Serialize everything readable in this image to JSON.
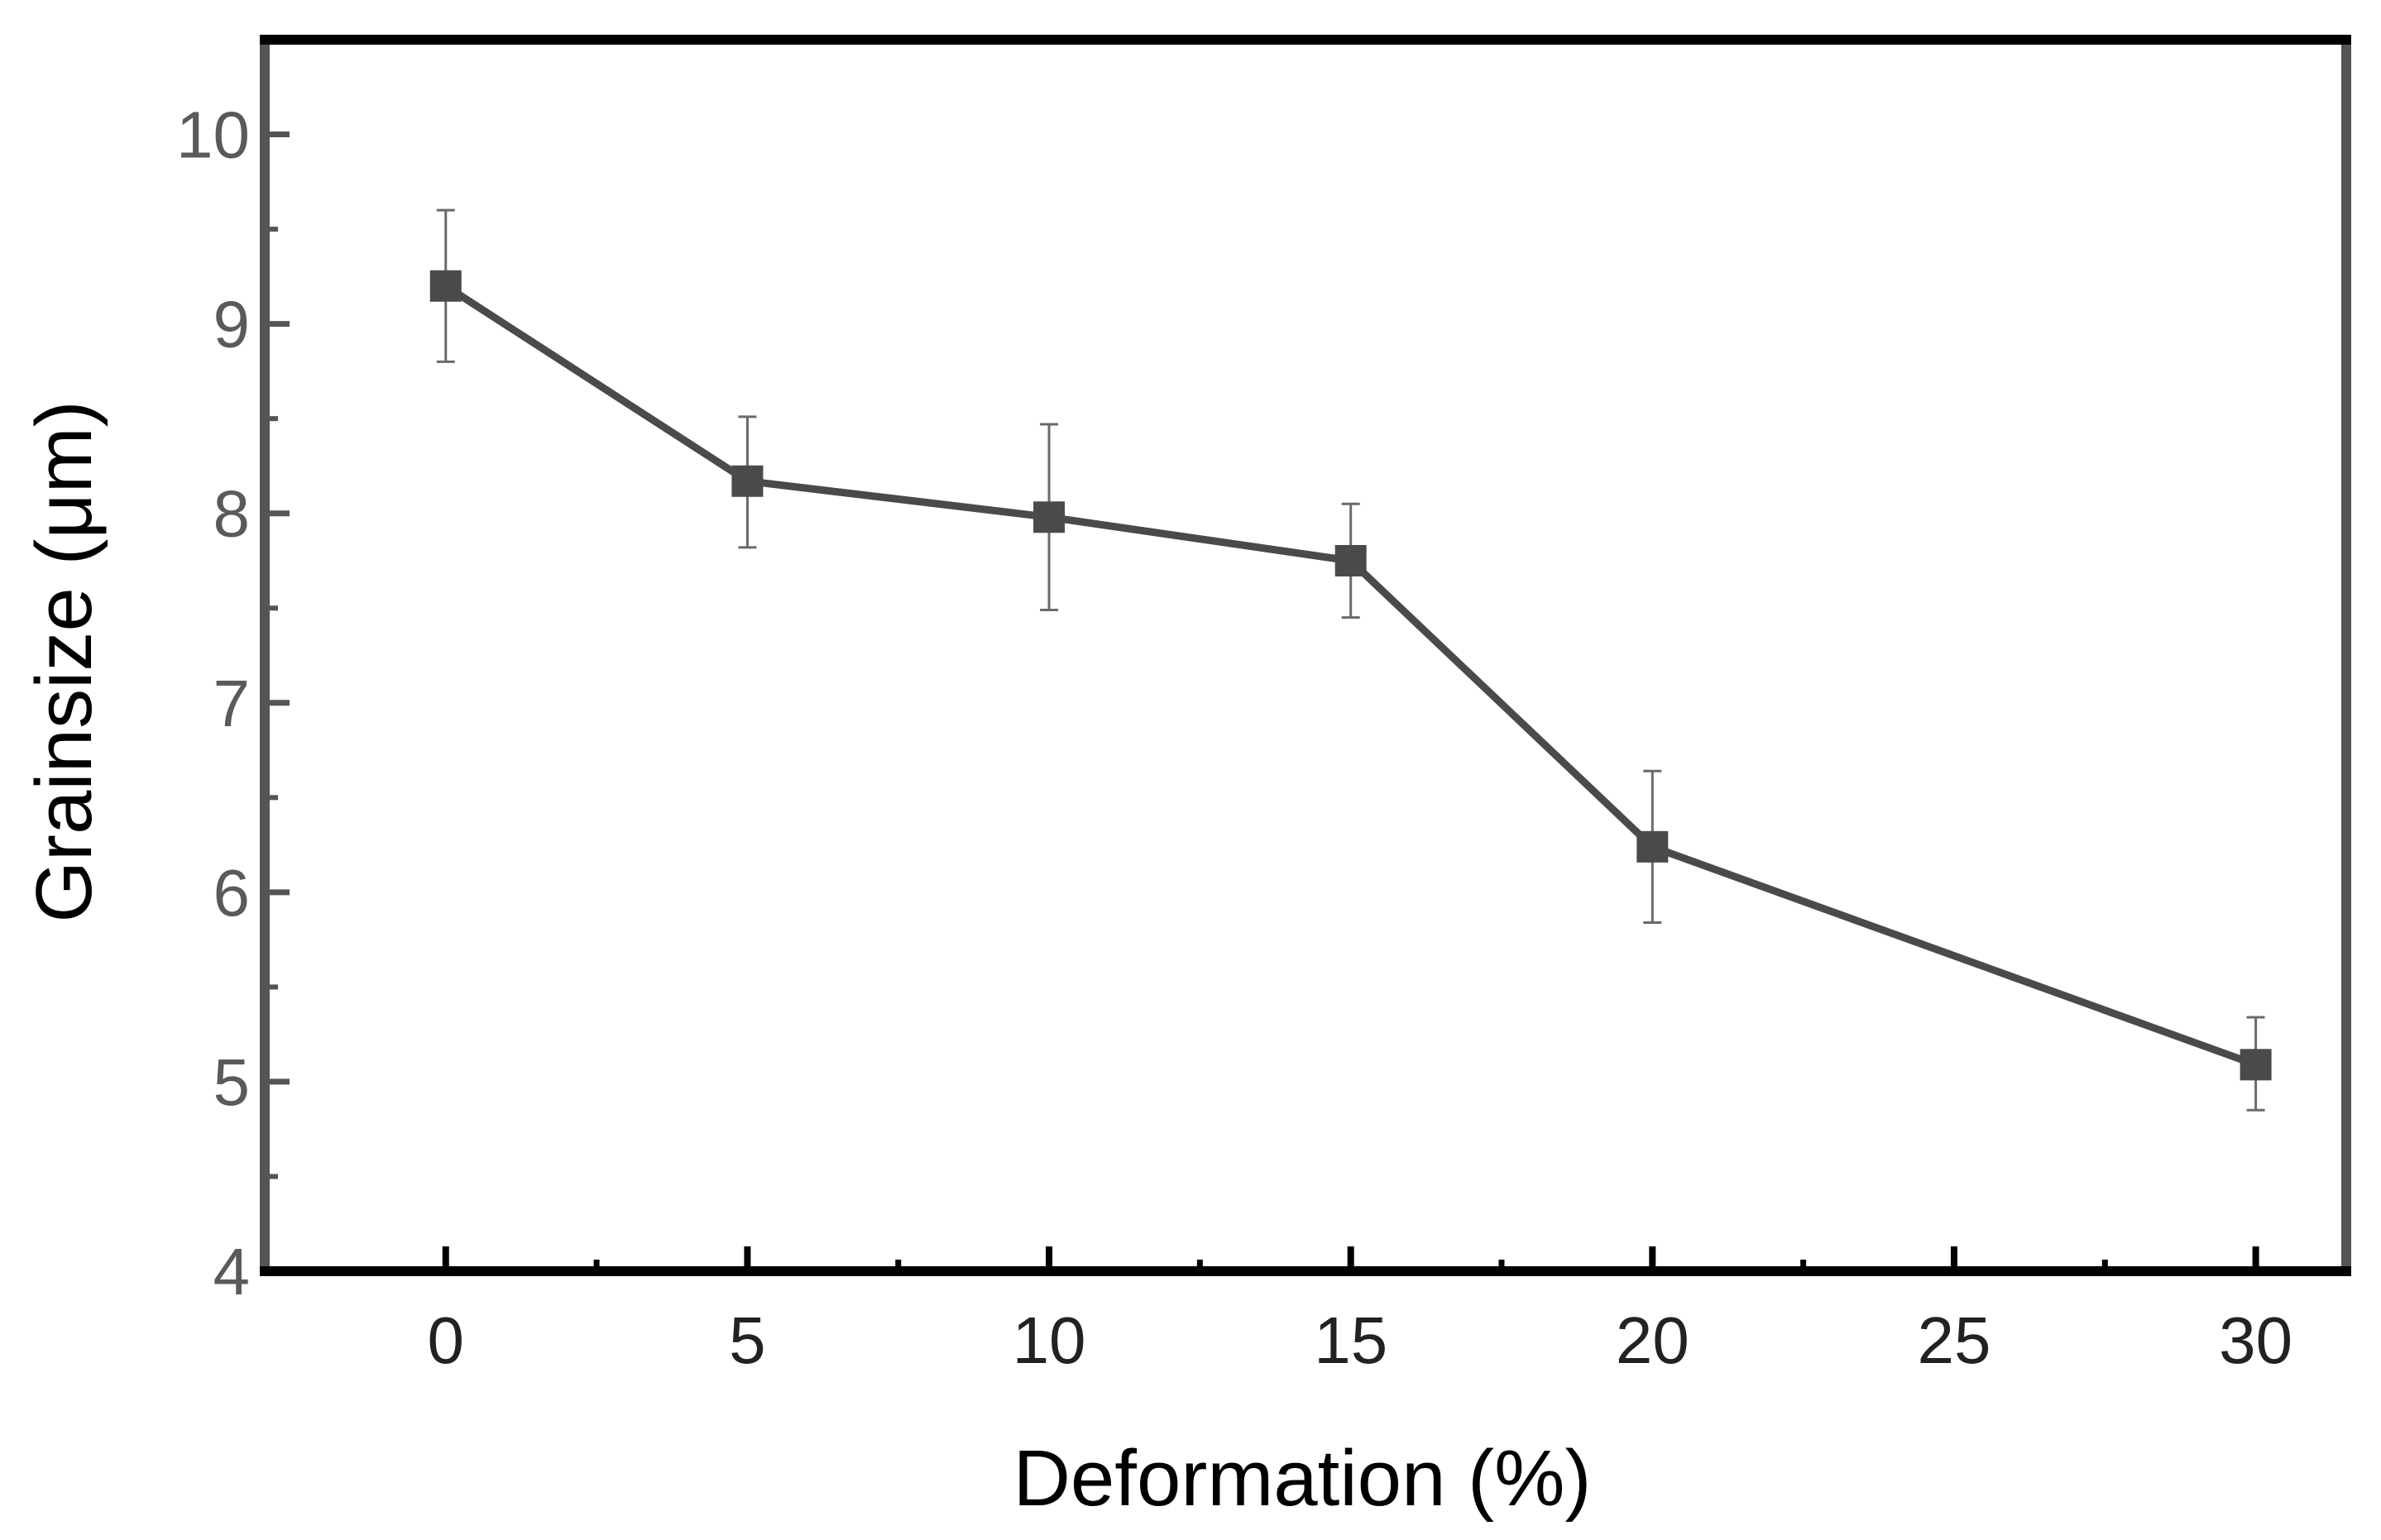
{
  "chart_data": {
    "type": "line",
    "title": "",
    "xlabel": "Deformation (%)",
    "ylabel": "Grainsize (μm)",
    "xlim": [
      -3,
      31.5
    ],
    "ylim": [
      4,
      10.5
    ],
    "x_ticks": [
      "0",
      "5",
      "10",
      "15",
      "20",
      "25",
      "30"
    ],
    "y_ticks": [
      "4",
      "5",
      "6",
      "7",
      "8",
      "9",
      "10"
    ],
    "x_tick_values": [
      0,
      5,
      10,
      15,
      20,
      25,
      30
    ],
    "y_tick_values": [
      4,
      5,
      6,
      7,
      8,
      9,
      10
    ],
    "x_minor_tick_values": [
      2.5,
      7.5,
      12.5,
      17.5,
      22.5,
      27.5
    ],
    "y_minor_tick_values": [
      4.5,
      5.5,
      6.5,
      7.5,
      8.5,
      9.5
    ],
    "grid": false,
    "series": [
      {
        "name": "Grainsize",
        "marker": "square",
        "x": [
          0,
          5,
          10,
          15,
          20,
          30
        ],
        "y": [
          9.2,
          8.17,
          7.98,
          7.75,
          6.24,
          5.09
        ],
        "err_low": [
          8.8,
          7.82,
          7.49,
          7.45,
          5.84,
          4.85
        ],
        "err_high": [
          9.6,
          8.51,
          8.47,
          8.05,
          6.64,
          5.34
        ]
      }
    ]
  },
  "colors": {
    "line": "#4a4a4a",
    "marker": "#4a4a4a",
    "frame_left_right": "#555555",
    "frame_top_bottom": "#000000",
    "tick_label": "#5a5a5a",
    "axis_title": "#000000",
    "background": "#ffffff"
  }
}
